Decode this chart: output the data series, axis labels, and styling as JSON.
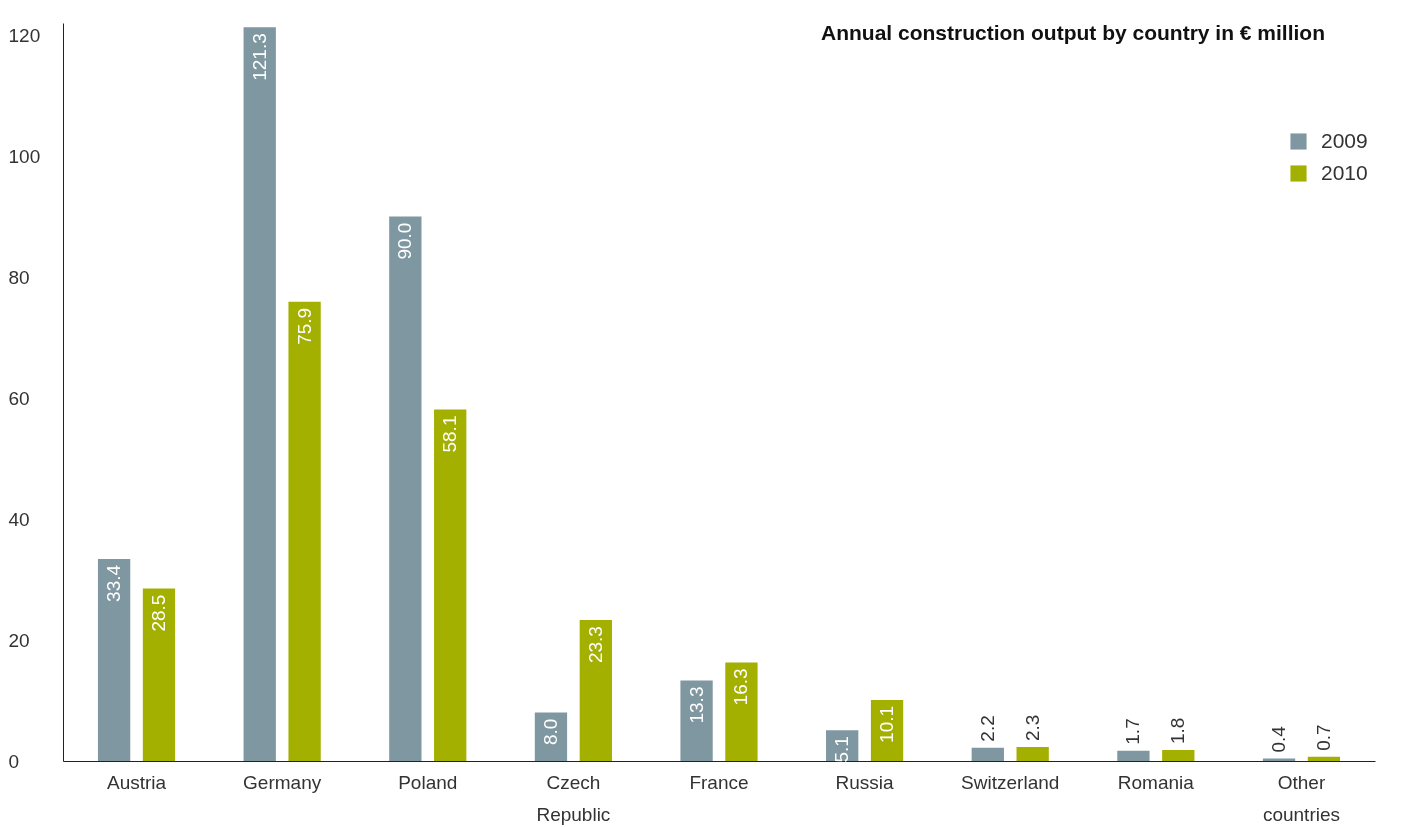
{
  "chart_data": {
    "type": "bar",
    "title": "Annual construction output by country in € million",
    "categories": [
      "Austria",
      "Germany",
      "Poland",
      "Czech Republic",
      "France",
      "Russia",
      "Switzerland",
      "Romania",
      "Other countries"
    ],
    "series": [
      {
        "name": "2009",
        "color": "#7f97a0",
        "values": [
          33.4,
          121.3,
          90.0,
          8.0,
          13.3,
          5.1,
          2.2,
          1.7,
          0.4
        ],
        "value_labels": [
          "33.4",
          "121.3",
          "90.0",
          "8.0",
          "13.3",
          "5.1",
          "2.2",
          "1.7",
          "0.4"
        ]
      },
      {
        "name": "2010",
        "color": "#a3b000",
        "values": [
          28.5,
          75.9,
          58.1,
          23.3,
          16.3,
          10.1,
          2.3,
          1.8,
          0.7
        ],
        "value_labels": [
          "28.5",
          "75.9",
          "58.1",
          "23.3",
          "16.3",
          "10.1",
          "2.3",
          "1.8",
          "0.7"
        ]
      }
    ],
    "ylim": [
      0,
      122
    ],
    "yticks": [
      0,
      20,
      40,
      60,
      80,
      100,
      120
    ],
    "legend": "top right",
    "grid": false
  }
}
